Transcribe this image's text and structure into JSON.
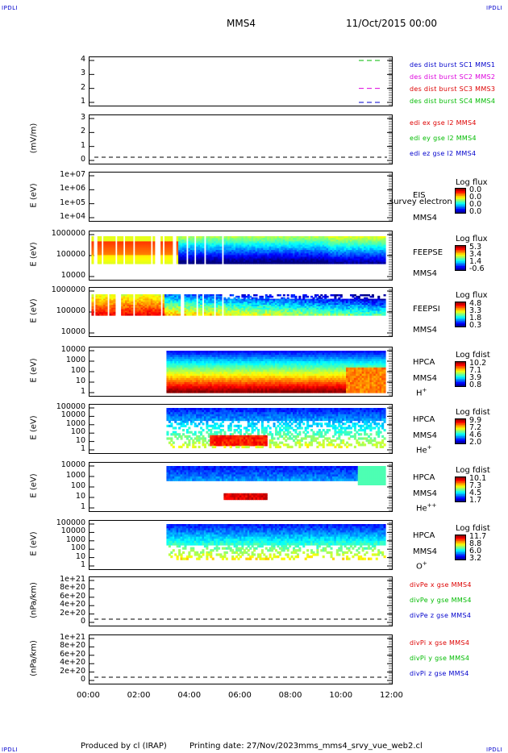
{
  "corners": {
    "tl": "IPDLI",
    "tr": "IPDLI",
    "bl": "IPDLI",
    "br": "IPDLI"
  },
  "header": {
    "spacecraft": "MMS4",
    "date": "11/Oct/2015 00:00"
  },
  "footer": {
    "produced": "Produced by cl (IRAP)",
    "printing": "Printing date: 27/Nov/2023",
    "file": "mms_mms4_srvy_vue_web2.cl"
  },
  "xaxis": {
    "ticks": [
      "00:00",
      "02:00",
      "04:00",
      "06:00",
      "08:00",
      "10:00",
      "12:00"
    ]
  },
  "colors": {
    "red": "#dd0000",
    "green": "#00bb00",
    "blue": "#0000cc",
    "magenta": "#dd00dd"
  },
  "chart_data": [
    {
      "type": "line",
      "id": "burst",
      "yticks": [
        "4",
        "3",
        "2",
        "1"
      ],
      "ylim": [
        0.5,
        4.5
      ],
      "series": [
        {
          "name": "des dist burst SC1 MMS1",
          "color": "#0000cc"
        },
        {
          "name": "des dist burst SC2 MMS2",
          "color": "#dd00dd"
        },
        {
          "name": "des dist burst SC3 MMS3",
          "color": "#dd0000"
        },
        {
          "name": "des dist burst SC4 MMS4",
          "color": "#00bb00"
        }
      ]
    },
    {
      "type": "line",
      "id": "edi",
      "ylabel": "(mV/m)",
      "yticks": [
        "3",
        "2",
        "1",
        "0"
      ],
      "ylim": [
        -0.5,
        3.5
      ],
      "series": [
        {
          "name": "edi ex gse l2 MMS4",
          "color": "#dd0000"
        },
        {
          "name": "edi ey gse l2 MMS4",
          "color": "#00bb00"
        },
        {
          "name": "edi ez gse l2 MMS4",
          "color": "#0000cc"
        }
      ]
    },
    {
      "type": "heatmap",
      "id": "eis",
      "ylabel": "E (eV)",
      "yticks": [
        "1e+07",
        "1e+06",
        "1e+05",
        "1e+04"
      ],
      "instrument": [
        "EIS",
        "MMS4"
      ],
      "overlay": "survey electron tof",
      "colorbar": {
        "title": "Log flux",
        "values": [
          "0.0",
          "0.0",
          "0.0",
          "0.0"
        ]
      }
    },
    {
      "type": "heatmap",
      "id": "feepse",
      "ylabel": "E (eV)",
      "yticks": [
        "1000000",
        "100000",
        "10000"
      ],
      "instrument": [
        "FEEPSE",
        "MMS4"
      ],
      "colorbar": {
        "title": "Log flux",
        "values": [
          "5.3",
          "3.4",
          "1.4",
          "-0.6"
        ]
      }
    },
    {
      "type": "heatmap",
      "id": "feepsi",
      "ylabel": "E (eV)",
      "yticks": [
        "1000000",
        "100000",
        "10000"
      ],
      "instrument": [
        "FEEPSI",
        "MMS4"
      ],
      "colorbar": {
        "title": "Log flux",
        "values": [
          "4.8",
          "3.3",
          "1.8",
          "0.3"
        ]
      }
    },
    {
      "type": "heatmap",
      "id": "hpca_h",
      "ylabel": "E (eV)",
      "yticks": [
        "10000",
        "1000",
        "100",
        "10",
        "1"
      ],
      "instrument": [
        "HPCA",
        "MMS4"
      ],
      "species": "H",
      "charge": "+",
      "colorbar": {
        "title": "Log fdist",
        "values": [
          "10.2",
          "7.1",
          "3.9",
          "0.8"
        ]
      }
    },
    {
      "type": "heatmap",
      "id": "hpca_he",
      "ylabel": "E (eV)",
      "yticks": [
        "100000",
        "10000",
        "1000",
        "100",
        "10",
        "1"
      ],
      "instrument": [
        "HPCA",
        "MMS4"
      ],
      "species": "He",
      "charge": "+",
      "colorbar": {
        "title": "Log fdist",
        "values": [
          "9.9",
          "7.2",
          "4.6",
          "2.0"
        ]
      }
    },
    {
      "type": "heatmap",
      "id": "hpca_hepp",
      "ylabel": "E (eV)",
      "yticks": [
        "10000",
        "1000",
        "100",
        "10",
        "1"
      ],
      "instrument": [
        "HPCA",
        "MMS4"
      ],
      "species": "He",
      "charge": "++",
      "colorbar": {
        "title": "Log fdist",
        "values": [
          "10.1",
          "7.3",
          "4.5",
          "1.7"
        ]
      }
    },
    {
      "type": "heatmap",
      "id": "hpca_o",
      "ylabel": "E (eV)",
      "yticks": [
        "100000",
        "10000",
        "1000",
        "100",
        "10",
        "1"
      ],
      "instrument": [
        "HPCA",
        "MMS4"
      ],
      "species": "O",
      "charge": "+",
      "colorbar": {
        "title": "Log fdist",
        "values": [
          "11.7",
          "8.8",
          "6.0",
          "3.2"
        ]
      }
    },
    {
      "type": "line",
      "id": "divpe",
      "ylabel": "(nPa/km)",
      "yticks": [
        "1e+21",
        "8e+20",
        "6e+20",
        "4e+20",
        "2e+20",
        "0"
      ],
      "series": [
        {
          "name": "divPe x gse MMS4",
          "color": "#dd0000"
        },
        {
          "name": "divPe y gse MMS4",
          "color": "#00bb00"
        },
        {
          "name": "divPe z gse MMS4",
          "color": "#0000cc"
        }
      ]
    },
    {
      "type": "line",
      "id": "divpi",
      "ylabel": "(nPa/km)",
      "yticks": [
        "1e+21",
        "8e+20",
        "6e+20",
        "4e+20",
        "2e+20",
        "0"
      ],
      "series": [
        {
          "name": "divPi x gse MMS4",
          "color": "#dd0000"
        },
        {
          "name": "divPi y gse MMS4",
          "color": "#00bb00"
        },
        {
          "name": "divPi z gse MMS4",
          "color": "#0000cc"
        }
      ]
    }
  ]
}
